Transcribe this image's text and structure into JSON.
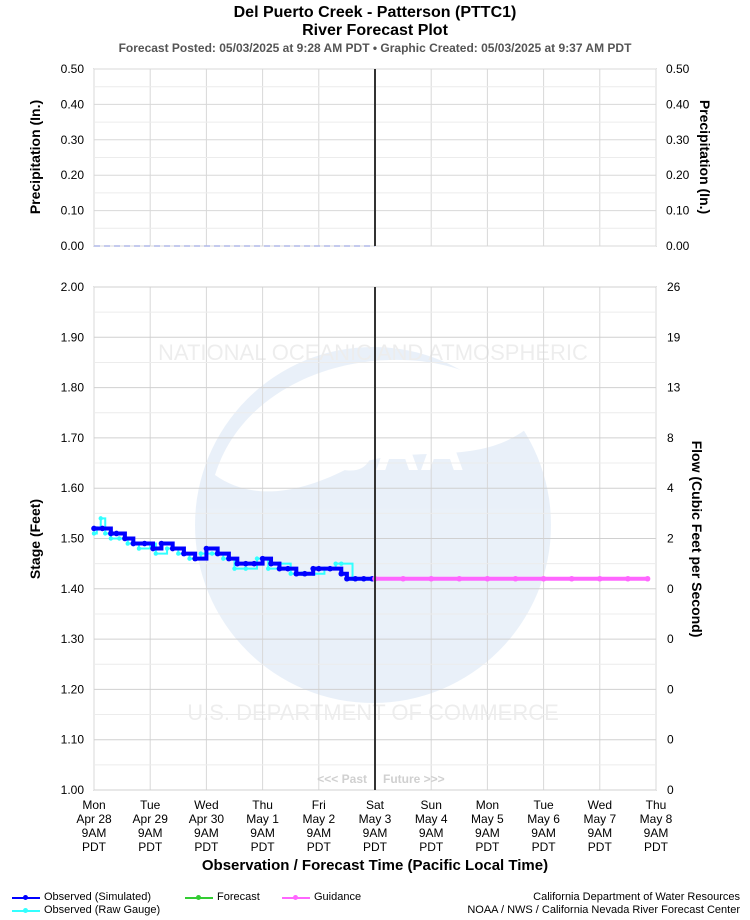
{
  "header": {
    "title": "Del Puerto Creek - Patterson (PTTC1)",
    "subtitle": "River Forecast Plot",
    "posted": "Forecast Posted: 05/03/2025 at 9:28 AM PDT  •  Graphic Created: 05/03/2025 at 9:37 AM PDT"
  },
  "chart_data": [
    {
      "type": "line",
      "panel": "precipitation",
      "ylabel_left": "Precipitation (In.)",
      "ylabel_right": "Precipitation (In.)",
      "ylim": [
        0,
        0.5
      ],
      "yticks": [
        "0.00",
        "0.10",
        "0.20",
        "0.30",
        "0.40",
        "0.50"
      ],
      "series": [
        {
          "kind": "observed-precip",
          "x": [
            0,
            5
          ],
          "values": [
            0.0,
            0.0
          ]
        }
      ]
    },
    {
      "type": "line",
      "panel": "stage",
      "xlabel": "Observation / Forecast Time (Pacific Local Time)",
      "ylabel_left": "Stage (Feet)",
      "ylabel_right": "Flow (Cubic Feet per Second)",
      "ylim": [
        1.0,
        2.0
      ],
      "yticks_left": [
        "1.00",
        "1.10",
        "1.20",
        "1.30",
        "1.40",
        "1.50",
        "1.60",
        "1.70",
        "1.80",
        "1.90",
        "2.00"
      ],
      "yticks_right": [
        "0",
        "0",
        "0",
        "0",
        "0",
        "2",
        "4",
        "8",
        "13",
        "19",
        "26"
      ],
      "x_tick_labels": [
        [
          "Mon",
          "Apr 28",
          "9AM",
          "PDT"
        ],
        [
          "Tue",
          "Apr 29",
          "9AM",
          "PDT"
        ],
        [
          "Wed",
          "Apr 30",
          "9AM",
          "PDT"
        ],
        [
          "Thu",
          "May 1",
          "9AM",
          "PDT"
        ],
        [
          "Fri",
          "May 2",
          "9AM",
          "PDT"
        ],
        [
          "Sat",
          "May 3",
          "9AM",
          "PDT"
        ],
        [
          "Sun",
          "May 4",
          "9AM",
          "PDT"
        ],
        [
          "Mon",
          "May 5",
          "9AM",
          "PDT"
        ],
        [
          "Tue",
          "May 6",
          "9AM",
          "PDT"
        ],
        [
          "Wed",
          "May 7",
          "9AM",
          "PDT"
        ],
        [
          "Thu",
          "May 8",
          "9AM",
          "PDT"
        ]
      ],
      "now_marker_day": 5,
      "past_label": "<<< Past",
      "future_label": "Future >>>",
      "grid": true,
      "series": [
        {
          "name": "Observed (Simulated)",
          "color": "#0000ff",
          "x": [
            0.0,
            0.15,
            0.3,
            0.4,
            0.55,
            0.7,
            0.9,
            1.05,
            1.2,
            1.4,
            1.6,
            1.8,
            2.0,
            2.2,
            2.4,
            2.55,
            2.7,
            2.85,
            3.0,
            3.15,
            3.3,
            3.45,
            3.6,
            3.75,
            3.9,
            4.0,
            4.2,
            4.4,
            4.5,
            4.65,
            4.8,
            4.95
          ],
          "values": [
            1.52,
            1.52,
            1.51,
            1.51,
            1.5,
            1.49,
            1.49,
            1.48,
            1.49,
            1.48,
            1.47,
            1.46,
            1.48,
            1.47,
            1.46,
            1.45,
            1.45,
            1.45,
            1.46,
            1.45,
            1.44,
            1.44,
            1.43,
            1.43,
            1.44,
            1.44,
            1.44,
            1.43,
            1.42,
            1.42,
            1.42,
            1.42
          ]
        },
        {
          "name": "Observed (Raw Gauge)",
          "color": "#33ffff",
          "x": [
            0.0,
            0.05,
            0.12,
            0.2,
            0.3,
            0.45,
            0.6,
            0.8,
            1.0,
            1.1,
            1.3,
            1.5,
            1.7,
            1.9,
            2.1,
            2.3,
            2.5,
            2.7,
            2.9,
            3.1,
            3.3,
            3.5,
            3.7,
            3.9,
            4.1,
            4.3,
            4.4,
            4.6,
            4.8,
            4.95
          ],
          "values": [
            1.51,
            1.52,
            1.54,
            1.51,
            1.5,
            1.5,
            1.49,
            1.48,
            1.49,
            1.47,
            1.48,
            1.47,
            1.46,
            1.47,
            1.47,
            1.46,
            1.44,
            1.44,
            1.46,
            1.44,
            1.45,
            1.43,
            1.43,
            1.43,
            1.44,
            1.45,
            1.45,
            1.42,
            1.42,
            1.42
          ]
        },
        {
          "name": "Forecast",
          "color": "#33cc33",
          "x": [],
          "values": []
        },
        {
          "name": "Guidance",
          "color": "#ff66ff",
          "x": [
            5.0,
            5.5,
            6.0,
            6.5,
            7.0,
            7.5,
            8.0,
            8.5,
            9.0,
            9.5,
            9.85
          ],
          "values": [
            1.42,
            1.42,
            1.42,
            1.42,
            1.42,
            1.42,
            1.42,
            1.42,
            1.42,
            1.42,
            1.42
          ]
        }
      ]
    }
  ],
  "credits": {
    "line1": "California Department of Water Resources",
    "line2": "NOAA / NWS / California Nevada River Forecast Center"
  }
}
